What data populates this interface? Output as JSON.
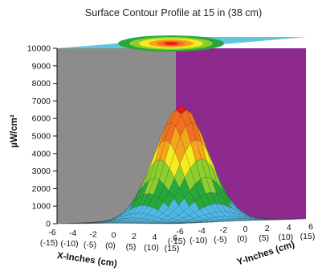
{
  "chart_data": {
    "type": "surface-3d",
    "title": "Surface Contour Profile at 15 in (38 cm)",
    "zlabel": "µW/cm²",
    "xlabel": "X-Inches (cm)",
    "ylabel": "Y-Inches (cm)",
    "zlim": [
      0,
      10000
    ],
    "z_ticks": [
      "0",
      "1000",
      "2000",
      "3000",
      "4000",
      "5000",
      "6000",
      "7000",
      "8000",
      "9000",
      "10000"
    ],
    "x_ticks": [
      {
        "in": "-6",
        "cm": "(-15)"
      },
      {
        "in": "-4",
        "cm": "(-10)"
      },
      {
        "in": "-2",
        "cm": "(-5)"
      },
      {
        "in": "0",
        "cm": "(0)"
      },
      {
        "in": "2",
        "cm": "(5)"
      },
      {
        "in": "4",
        "cm": "(10)"
      },
      {
        "in": "6",
        "cm": "(15)"
      }
    ],
    "y_ticks": [
      {
        "in": "-6",
        "cm": "(-15)"
      },
      {
        "in": "-4",
        "cm": "(-10)"
      },
      {
        "in": "-2",
        "cm": "(-5)"
      },
      {
        "in": "0",
        "cm": "(0)"
      },
      {
        "in": "2",
        "cm": "(5)"
      },
      {
        "in": "4",
        "cm": "(10)"
      },
      {
        "in": "6",
        "cm": "(15)"
      }
    ],
    "xlim": [
      -6,
      6
    ],
    "ylim": [
      -6,
      6
    ],
    "peak": {
      "x": 0,
      "y": 0,
      "z": 6600
    },
    "profile_sigma_in": 1.8,
    "color_bands": [
      {
        "from": 0,
        "to": 1000,
        "color": "#4fb9e6"
      },
      {
        "from": 1000,
        "to": 2000,
        "color": "#27a83a"
      },
      {
        "from": 2000,
        "to": 3000,
        "color": "#8ccf2e"
      },
      {
        "from": 3000,
        "to": 4000,
        "color": "#f3ec1e"
      },
      {
        "from": 4000,
        "to": 5000,
        "color": "#f6a41b"
      },
      {
        "from": 5000,
        "to": 6000,
        "color": "#f26f1f"
      },
      {
        "from": 6000,
        "to": 10000,
        "color": "#e8191f"
      }
    ],
    "wall_colors": {
      "left": "#8c8c8c",
      "right": "#8e2a8e",
      "top": "#5fc6df",
      "floor": "#bfe6f2"
    },
    "grid": true
  }
}
